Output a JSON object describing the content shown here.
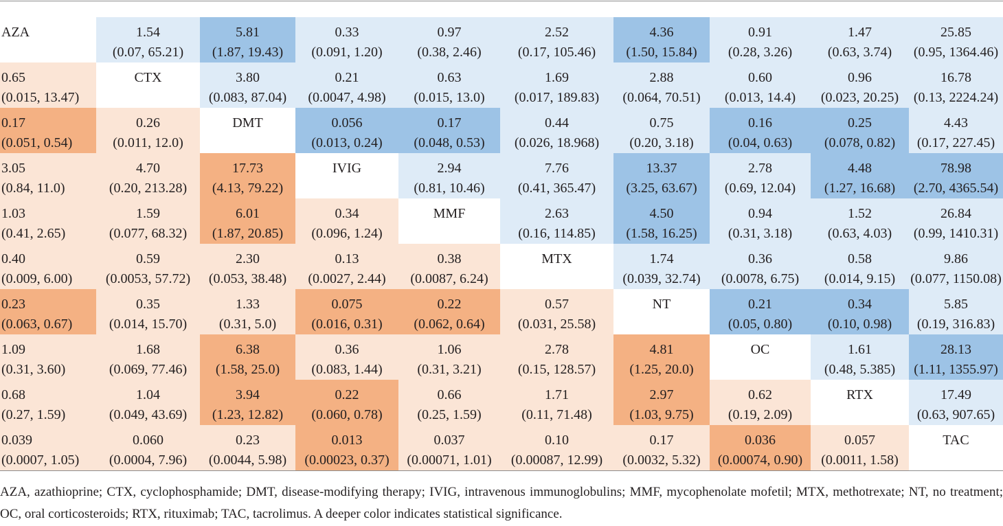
{
  "colors": {
    "text": "#231f20",
    "upper": "#DEEBF7",
    "upper_significant": "#9DC3E6",
    "lower": "#FBE5D6",
    "lower_significant": "#F4B183",
    "diagonal": "#FFFFFF"
  },
  "league_table": {
    "rows": [
      {
        "cells": [
          {
            "label": "AZA"
          },
          {
            "est": "1.54",
            "ci": "(0.07, 65.21)",
            "sig": false
          },
          {
            "est": "5.81",
            "ci": "(1.87, 19.43)",
            "sig": true
          },
          {
            "est": "0.33",
            "ci": "(0.091, 1.20)",
            "sig": false
          },
          {
            "est": "0.97",
            "ci": "(0.38, 2.46)",
            "sig": false
          },
          {
            "est": "2.52",
            "ci": "(0.17, 105.46)",
            "sig": false
          },
          {
            "est": "4.36",
            "ci": "(1.50, 15.84)",
            "sig": true
          },
          {
            "est": "0.91",
            "ci": "(0.28, 3.26)",
            "sig": false
          },
          {
            "est": "1.47",
            "ci": "(0.63, 3.74)",
            "sig": false
          },
          {
            "est": "25.85",
            "ci": "(0.95, 1364.46)",
            "sig": false
          }
        ]
      },
      {
        "cells": [
          {
            "est": "0.65",
            "ci": "(0.015, 13.47)",
            "sig": false
          },
          {
            "label": "CTX"
          },
          {
            "est": "3.80",
            "ci": "(0.083, 87.04)",
            "sig": false
          },
          {
            "est": "0.21",
            "ci": "(0.0047, 4.98)",
            "sig": false
          },
          {
            "est": "0.63",
            "ci": "(0.015, 13.0)",
            "sig": false
          },
          {
            "est": "1.69",
            "ci": "(0.017, 189.83)",
            "sig": false
          },
          {
            "est": "2.88",
            "ci": "(0.064, 70.51)",
            "sig": false
          },
          {
            "est": "0.60",
            "ci": "(0.013, 14.4)",
            "sig": false
          },
          {
            "est": "0.96",
            "ci": "(0.023, 20.25)",
            "sig": false
          },
          {
            "est": "16.78",
            "ci": "(0.13, 2224.24)",
            "sig": false
          }
        ]
      },
      {
        "cells": [
          {
            "est": "0.17",
            "ci": "(0.051, 0.54)",
            "sig": true
          },
          {
            "est": "0.26",
            "ci": "(0.011, 12.0)",
            "sig": false
          },
          {
            "label": "DMT"
          },
          {
            "est": "0.056",
            "ci": "(0.013, 0.24)",
            "sig": true
          },
          {
            "est": "0.17",
            "ci": "(0.048, 0.53)",
            "sig": true
          },
          {
            "est": "0.44",
            "ci": "(0.026, 18.968)",
            "sig": false
          },
          {
            "est": "0.75",
            "ci": "(0.20, 3.18)",
            "sig": false
          },
          {
            "est": "0.16",
            "ci": "(0.04, 0.63)",
            "sig": true
          },
          {
            "est": "0.25",
            "ci": "(0.078, 0.82)",
            "sig": true
          },
          {
            "est": "4.43",
            "ci": "(0.17, 227.45)",
            "sig": false
          }
        ]
      },
      {
        "cells": [
          {
            "est": "3.05",
            "ci": "(0.84, 11.0)",
            "sig": false
          },
          {
            "est": "4.70",
            "ci": "(0.20, 213.28)",
            "sig": false
          },
          {
            "est": "17.73",
            "ci": "(4.13, 79.22)",
            "sig": true
          },
          {
            "label": "IVIG"
          },
          {
            "est": "2.94",
            "ci": "(0.81, 10.46)",
            "sig": false
          },
          {
            "est": "7.76",
            "ci": "(0.41, 365.47)",
            "sig": false
          },
          {
            "est": "13.37",
            "ci": "(3.25, 63.67)",
            "sig": true
          },
          {
            "est": "2.78",
            "ci": "(0.69, 12.04)",
            "sig": false
          },
          {
            "est": "4.48",
            "ci": "(1.27, 16.68)",
            "sig": true
          },
          {
            "est": "78.98",
            "ci": "(2.70, 4365.54)",
            "sig": true
          }
        ]
      },
      {
        "cells": [
          {
            "est": "1.03",
            "ci": "(0.41, 2.65)",
            "sig": false
          },
          {
            "est": "1.59",
            "ci": "(0.077, 68.32)",
            "sig": false
          },
          {
            "est": "6.01",
            "ci": "(1.87, 20.85)",
            "sig": true
          },
          {
            "est": "0.34",
            "ci": "(0.096, 1.24)",
            "sig": false
          },
          {
            "label": "MMF"
          },
          {
            "est": "2.63",
            "ci": "(0.16, 114.85)",
            "sig": false
          },
          {
            "est": "4.50",
            "ci": "(1.58, 16.25)",
            "sig": true
          },
          {
            "est": "0.94",
            "ci": "(0.31, 3.18)",
            "sig": false
          },
          {
            "est": "1.52",
            "ci": "(0.63, 4.03)",
            "sig": false
          },
          {
            "est": "26.84",
            "ci": "(0.99, 1410.31)",
            "sig": false
          }
        ]
      },
      {
        "cells": [
          {
            "est": "0.40",
            "ci": "(0.009, 6.00)",
            "sig": false
          },
          {
            "est": "0.59",
            "ci": "(0.0053, 57.72)",
            "sig": false
          },
          {
            "est": "2.30",
            "ci": "(0.053, 38.48)",
            "sig": false
          },
          {
            "est": "0.13",
            "ci": "(0.0027, 2.44)",
            "sig": false
          },
          {
            "est": "0.38",
            "ci": "(0.0087, 6.24)",
            "sig": false
          },
          {
            "label": "MTX"
          },
          {
            "est": "1.74",
            "ci": "(0.039, 32.74)",
            "sig": false
          },
          {
            "est": "0.36",
            "ci": "(0.0078, 6.75)",
            "sig": false
          },
          {
            "est": "0.58",
            "ci": "(0.014, 9.15)",
            "sig": false
          },
          {
            "est": "9.86",
            "ci": "(0.077, 1150.08)",
            "sig": false
          }
        ]
      },
      {
        "cells": [
          {
            "est": "0.23",
            "ci": "(0.063, 0.67)",
            "sig": true
          },
          {
            "est": "0.35",
            "ci": "(0.014, 15.70)",
            "sig": false
          },
          {
            "est": "1.33",
            "ci": "(0.31, 5.0)",
            "sig": false
          },
          {
            "est": "0.075",
            "ci": "(0.016, 0.31)",
            "sig": true
          },
          {
            "est": "0.22",
            "ci": "(0.062, 0.64)",
            "sig": true
          },
          {
            "est": "0.57",
            "ci": "(0.031, 25.58)",
            "sig": false
          },
          {
            "label": "NT"
          },
          {
            "est": "0.21",
            "ci": "(0.05, 0.80)",
            "sig": true
          },
          {
            "est": "0.34",
            "ci": "(0.10, 0.98)",
            "sig": true
          },
          {
            "est": "5.85",
            "ci": "(0.19, 316.83)",
            "sig": false
          }
        ]
      },
      {
        "cells": [
          {
            "est": "1.09",
            "ci": "(0.31, 3.60)",
            "sig": false
          },
          {
            "est": "1.68",
            "ci": "(0.069, 77.46)",
            "sig": false
          },
          {
            "est": "6.38",
            "ci": "(1.58, 25.0)",
            "sig": true
          },
          {
            "est": "0.36",
            "ci": "(0.083, 1.44)",
            "sig": false
          },
          {
            "est": "1.06",
            "ci": "(0.31, 3.21)",
            "sig": false
          },
          {
            "est": "2.78",
            "ci": "(0.15, 128.57)",
            "sig": false
          },
          {
            "est": "4.81",
            "ci": "(1.25, 20.0)",
            "sig": true
          },
          {
            "label": "OC"
          },
          {
            "est": "1.61",
            "ci": "(0.48, 5.385)",
            "sig": false
          },
          {
            "est": "28.13",
            "ci": "(1.11, 1355.97)",
            "sig": true
          }
        ]
      },
      {
        "cells": [
          {
            "est": "0.68",
            "ci": "(0.27, 1.59)",
            "sig": false
          },
          {
            "est": "1.04",
            "ci": "(0.049, 43.69)",
            "sig": false
          },
          {
            "est": "3.94",
            "ci": "(1.23, 12.82)",
            "sig": true
          },
          {
            "est": "0.22",
            "ci": "(0.060, 0.78)",
            "sig": true
          },
          {
            "est": "0.66",
            "ci": "(0.25, 1.59)",
            "sig": false
          },
          {
            "est": "1.71",
            "ci": "(0.11, 71.48)",
            "sig": false
          },
          {
            "est": "2.97",
            "ci": "(1.03, 9.75)",
            "sig": true
          },
          {
            "est": "0.62",
            "ci": "(0.19, 2.09)",
            "sig": false
          },
          {
            "label": "RTX"
          },
          {
            "est": "17.49",
            "ci": "(0.63, 907.65)",
            "sig": false
          }
        ]
      },
      {
        "cells": [
          {
            "est": "0.039",
            "ci": "(0.0007, 1.05)",
            "sig": false
          },
          {
            "est": "0.060",
            "ci": "(0.0004, 7.96)",
            "sig": false
          },
          {
            "est": "0.23",
            "ci": "(0.0044, 5.98)",
            "sig": false
          },
          {
            "est": "0.013",
            "ci": "(0.00023, 0.37)",
            "sig": true
          },
          {
            "est": "0.037",
            "ci": "(0.00071, 1.01)",
            "sig": false
          },
          {
            "est": "0.10",
            "ci": "(0.00087, 12.99)",
            "sig": false
          },
          {
            "est": "0.17",
            "ci": "(0.0032, 5.32)",
            "sig": false
          },
          {
            "est": "0.036",
            "ci": "(0.00074, 0.90)",
            "sig": true
          },
          {
            "est": "0.057",
            "ci": "(0.0011, 1.58)",
            "sig": false
          },
          {
            "label": "TAC"
          }
        ]
      }
    ]
  },
  "footnote": "AZA, azathioprine; CTX, cyclophosphamide; DMT, disease-modifying therapy; IVIG, intravenous immunoglobulins; MMF, mycophenolate mofetil; MTX, methotrexate; NT, no treatment; OC, oral corticosteroids; RTX, rituximab; TAC, tacrolimus. A deeper color indicates statistical significance."
}
